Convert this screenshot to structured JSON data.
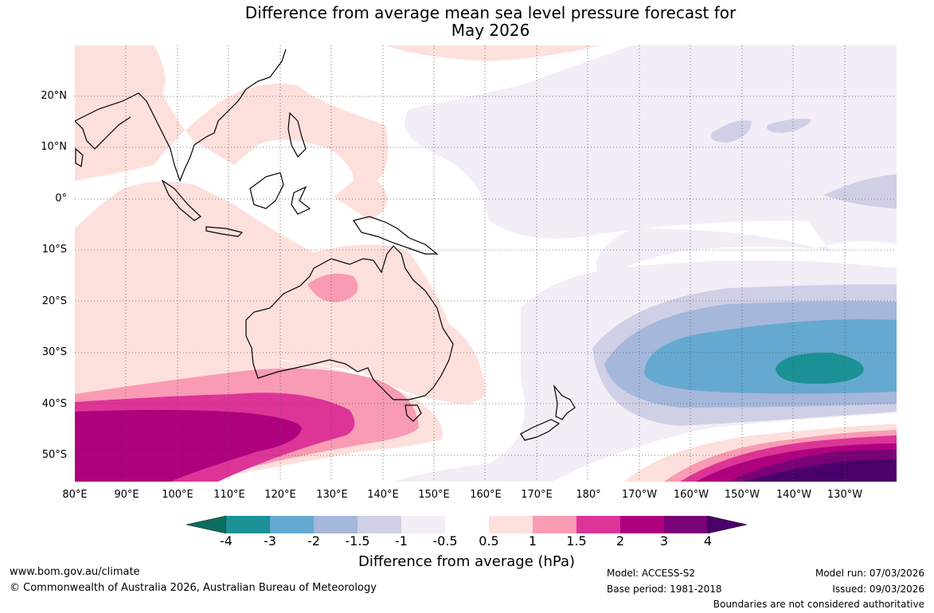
{
  "title": {
    "line1": "Difference from average mean sea level pressure forecast for",
    "line2": "May 2026"
  },
  "map": {
    "lat_labels": [
      "20°N",
      "10°N",
      "0°",
      "10°S",
      "20°S",
      "30°S",
      "40°S",
      "50°S"
    ],
    "lon_labels": [
      "80°E",
      "90°E",
      "100°E",
      "110°E",
      "120°E",
      "130°E",
      "140°E",
      "150°E",
      "160°E",
      "170°E",
      "180°",
      "170°W",
      "160°W",
      "150°W",
      "140°W",
      "130°W"
    ],
    "anomaly_regions": [
      {
        "name": "southern-ocean-high",
        "level": 2,
        "lon_range": "80°E-120°E",
        "lat_range": "40°S-55°S"
      },
      {
        "name": "southeast-pacific-low",
        "level": -3,
        "lon_range": "155°W-130°W",
        "lat_range": "30°S-37°S"
      },
      {
        "name": "south-pacific-high",
        "level": 4,
        "lon_range": "150°W-130°W",
        "lat_range": "50°S-55°S"
      },
      {
        "name": "northern-australia-high",
        "level": 1,
        "lon_range": "125°E-132°E",
        "lat_range": "15°S-19°S"
      }
    ]
  },
  "colorbar": {
    "levels": [
      "-4",
      "-3",
      "-2",
      "-1.5",
      "-1",
      "-0.5",
      "0.5",
      "1",
      "1.5",
      "2",
      "3",
      "4"
    ],
    "colors": [
      "#0d6e5f",
      "#1b9195",
      "#65a9d0",
      "#a5b7db",
      "#cfd0e5",
      "#f2edf6",
      "#ffffff",
      "#fde0dc",
      "#f99bb4",
      "#dd3497",
      "#ae017e",
      "#7a0177",
      "#49006a"
    ],
    "title": "Difference from average (hPa)"
  },
  "footer": {
    "website": "www.bom.gov.au/climate",
    "copyright": "© Commonwealth of Australia 2026, Australian Bureau of Meteorology",
    "model": "Model: ACCESS-S2",
    "base_period": "Base period: 1981-2018",
    "model_run": "Model run: 07/03/2026",
    "issued": "Issued: 09/03/2026",
    "disclaimer": "Boundaries are not considered authoritative"
  }
}
